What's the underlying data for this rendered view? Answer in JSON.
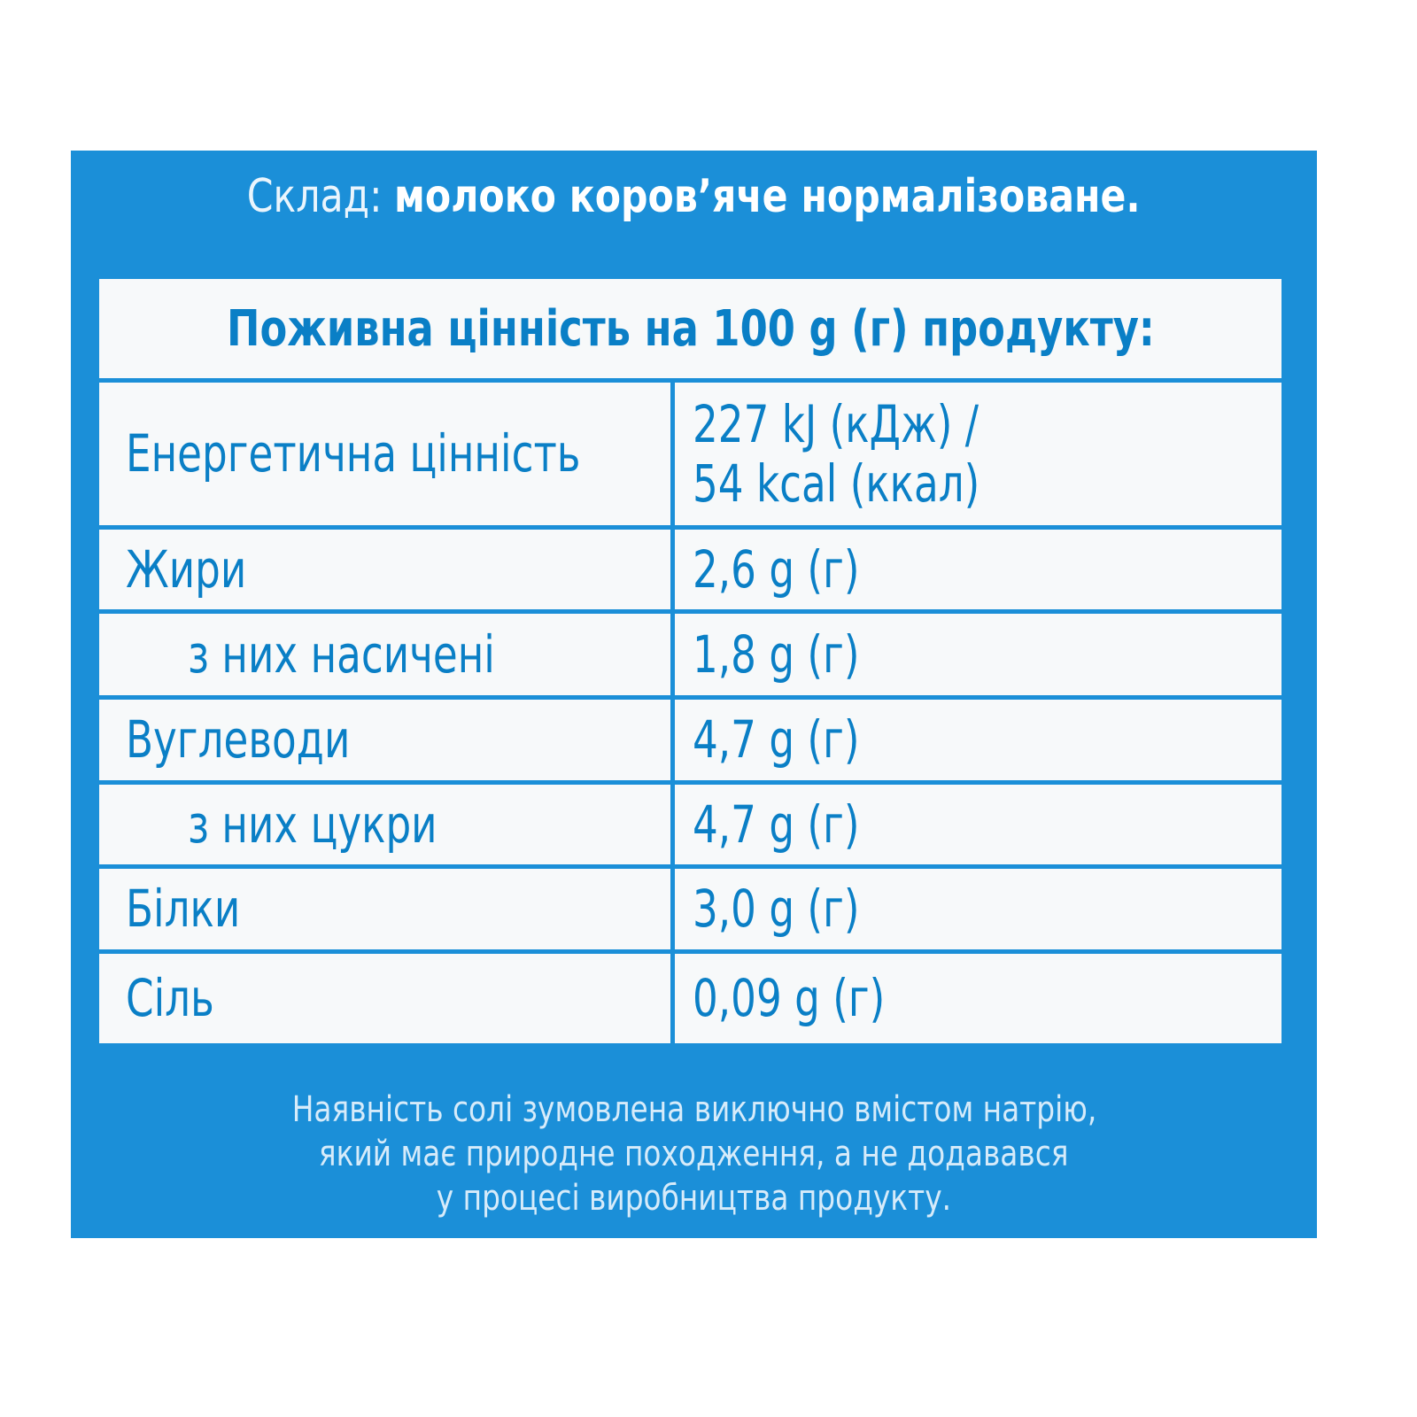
{
  "composition": {
    "label": "Склад:",
    "value": "молоко коров’яче нормалізоване."
  },
  "table": {
    "header": "Поживна цінність на 100 g (г) продукту:",
    "rows": [
      {
        "name": "Енергетична цінність",
        "value_line1": "227 kJ (кДж) /",
        "value_line2": "54 kcal (ккал)",
        "indent": false
      },
      {
        "name": "Жири",
        "value": "2,6 g (г)",
        "indent": false
      },
      {
        "name": "з них насичені",
        "value": "1,8 g (г)",
        "indent": true
      },
      {
        "name": "Вуглеводи",
        "value": "4,7 g (г)",
        "indent": false
      },
      {
        "name": "з них цукри",
        "value": "4,7 g (г)",
        "indent": true
      },
      {
        "name": "Білки",
        "value": "3,0 g (г)",
        "indent": false
      },
      {
        "name": "Сіль",
        "value": "0,09 g (г)",
        "indent": false
      }
    ]
  },
  "note": {
    "lines": [
      "Наявність солі зумовлена виключно вмістом натрію,",
      "який має природне походження, а не додавався",
      "у процесі виробництва продукту."
    ]
  },
  "colors": {
    "panel": "#1b8fd8",
    "text_blue": "#0a7fc6",
    "table_bg": "#f7f9fa"
  }
}
